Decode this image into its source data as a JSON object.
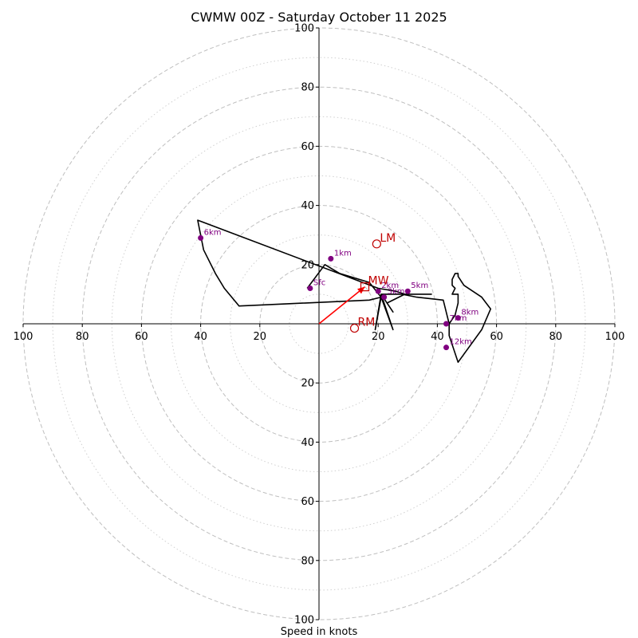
{
  "chart_data": {
    "type": "hodograph",
    "title": "CWMW 00Z - Saturday October 11 2025",
    "xlabel": "Speed in knots",
    "range": [
      -100,
      100
    ],
    "rings_major": [
      20,
      40,
      60,
      80,
      100
    ],
    "rings_minor": [
      10,
      30,
      50,
      70,
      90
    ],
    "ticks": [
      {
        "v": -100,
        "label": "100"
      },
      {
        "v": -80,
        "label": "80"
      },
      {
        "v": -60,
        "label": "60"
      },
      {
        "v": -40,
        "label": "40"
      },
      {
        "v": -20,
        "label": "20"
      },
      {
        "v": 20,
        "label": "20"
      },
      {
        "v": 40,
        "label": "40"
      },
      {
        "v": 60,
        "label": "60"
      },
      {
        "v": 80,
        "label": "80"
      },
      {
        "v": 100,
        "label": "100"
      }
    ],
    "hodograph": [
      [
        -4,
        12
      ],
      [
        2,
        20
      ],
      [
        7,
        17
      ],
      [
        17,
        14
      ],
      [
        21,
        9
      ],
      [
        17,
        8
      ],
      [
        -27,
        6
      ],
      [
        -32,
        12
      ],
      [
        -35,
        17
      ],
      [
        -39,
        25
      ],
      [
        -41,
        35
      ],
      [
        20,
        12
      ],
      [
        26,
        11
      ],
      [
        29,
        10
      ],
      [
        38,
        10
      ],
      [
        29,
        10
      ],
      [
        23,
        7
      ],
      [
        25,
        4
      ],
      [
        21,
        10
      ],
      [
        19,
        -2
      ],
      [
        21,
        9
      ],
      [
        25,
        -2
      ],
      [
        21,
        10
      ],
      [
        28,
        10
      ],
      [
        33,
        9
      ],
      [
        42,
        8
      ],
      [
        43,
        4
      ],
      [
        44,
        0
      ],
      [
        44,
        -4
      ],
      [
        47,
        -13
      ],
      [
        55,
        -2
      ],
      [
        58,
        5
      ],
      [
        55,
        9
      ],
      [
        49,
        13
      ],
      [
        47,
        16
      ],
      [
        47,
        17
      ],
      [
        46,
        17
      ],
      [
        45,
        15
      ],
      [
        45,
        13
      ],
      [
        46,
        12
      ],
      [
        45,
        10
      ],
      [
        47,
        10
      ],
      [
        47,
        9
      ],
      [
        47,
        7
      ],
      [
        46,
        3
      ],
      [
        44,
        0
      ]
    ],
    "height_points": [
      {
        "u": -3,
        "v": 12,
        "label": "Sfc"
      },
      {
        "u": 4,
        "v": 22,
        "label": "1km"
      },
      {
        "u": 20,
        "v": 11,
        "label": "2km"
      },
      {
        "u": 22,
        "v": 9,
        "label": "3km"
      },
      {
        "u": 30,
        "v": 11,
        "label": "5km"
      },
      {
        "u": -40,
        "v": 29,
        "label": "6km"
      },
      {
        "u": 43,
        "v": 0,
        "label": "7km"
      },
      {
        "u": 47,
        "v": 2,
        "label": "8km"
      },
      {
        "u": 43,
        "v": -8,
        "label": "12km"
      }
    ],
    "storm_motion": [
      {
        "label": "LM",
        "u": 19.5,
        "v": 27,
        "marker": "circle"
      },
      {
        "label": "MW",
        "u": 15.5,
        "v": 12.5,
        "marker": "square"
      },
      {
        "label": "RM",
        "u": 12,
        "v": -1.5,
        "marker": "circle"
      }
    ],
    "mean_wind_arrow": {
      "u": 15.5,
      "v": 12.5
    },
    "colors": {
      "trace": "#000000",
      "height_points": "#800080",
      "storm_motion": "#c00000",
      "arrow": "#ff0000",
      "rings": "#bfbfbf",
      "axes": "#000000"
    }
  }
}
